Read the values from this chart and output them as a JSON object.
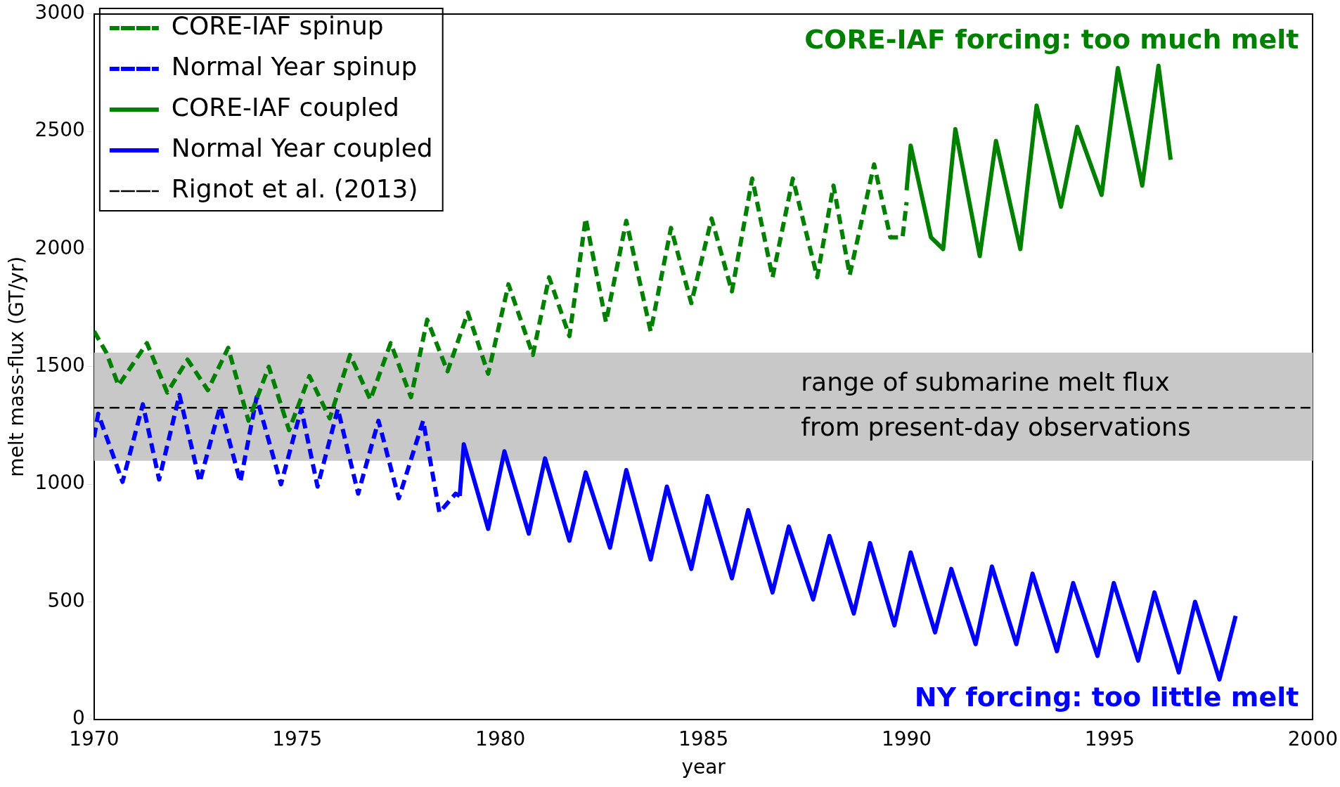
{
  "chart_data": {
    "type": "line",
    "xlabel": "year",
    "ylabel": "melt mass-flux (GT/yr)",
    "xlim": [
      1970,
      2000
    ],
    "ylim": [
      0,
      3000
    ],
    "xticks": [
      1970,
      1975,
      1980,
      1985,
      1990,
      1995,
      2000
    ],
    "yticks": [
      0,
      500,
      1000,
      1500,
      2000,
      2500,
      3000
    ],
    "legend": "top left",
    "grid": false,
    "series": [
      {
        "name": "CORE-IAF spinup",
        "color": "#008000",
        "line_style": "dashed",
        "x": [
          1970,
          1970.3,
          1970.6,
          1971.3,
          1971.8,
          1972.3,
          1972.8,
          1973.3,
          1973.8,
          1974.3,
          1974.8,
          1975.3,
          1975.8,
          1976.3,
          1976.8,
          1977.3,
          1977.8,
          1978.2,
          1978.7,
          1979.2,
          1979.7,
          1980.2,
          1980.8,
          1981.2,
          1981.7,
          1982.1,
          1982.6,
          1983.1,
          1983.7,
          1984.2,
          1984.7,
          1985.2,
          1985.7,
          1986.2,
          1986.7,
          1987.2,
          1987.8,
          1988.2,
          1988.6,
          1989.2,
          1989.6,
          1989.9,
          1990
        ],
        "values": [
          1650,
          1560,
          1420,
          1600,
          1390,
          1530,
          1400,
          1580,
          1270,
          1500,
          1230,
          1460,
          1280,
          1550,
          1360,
          1600,
          1370,
          1700,
          1480,
          1730,
          1470,
          1850,
          1550,
          1880,
          1630,
          2130,
          1690,
          2120,
          1650,
          2090,
          1770,
          2130,
          1820,
          2300,
          1880,
          2300,
          1880,
          2270,
          1890,
          2360,
          2050,
          2050,
          2200
        ]
      },
      {
        "name": "Normal Year spinup",
        "color": "#0000ff",
        "line_style": "dashed",
        "x": [
          1970,
          1970.1,
          1970.7,
          1971.2,
          1971.6,
          1972.1,
          1972.6,
          1973.1,
          1973.6,
          1974,
          1974.6,
          1975.1,
          1975.5,
          1976,
          1976.5,
          1977,
          1977.5,
          1978.1,
          1978.5,
          1978.9,
          1979
        ],
        "values": [
          1200,
          1300,
          1010,
          1340,
          1020,
          1380,
          1010,
          1330,
          1010,
          1370,
          1000,
          1320,
          990,
          1320,
          960,
          1270,
          940,
          1270,
          880,
          960,
          950
        ]
      },
      {
        "name": "CORE-IAF coupled",
        "color": "#008000",
        "line_style": "solid",
        "x": [
          1990,
          1990.1,
          1990.6,
          1990.9,
          1991.2,
          1991.8,
          1992.2,
          1992.8,
          1993.2,
          1993.8,
          1994.2,
          1994.8,
          1995.2,
          1995.8,
          1996.2,
          1996.5
        ],
        "values": [
          2250,
          2440,
          2050,
          2000,
          2510,
          1970,
          2460,
          2000,
          2610,
          2180,
          2520,
          2230,
          2770,
          2270,
          2780,
          2380
        ]
      },
      {
        "name": "Normal Year coupled",
        "color": "#0000ff",
        "line_style": "solid",
        "x": [
          1979,
          1979.1,
          1979.7,
          1980.1,
          1980.7,
          1981.1,
          1981.7,
          1982.1,
          1982.7,
          1983.1,
          1983.7,
          1984.1,
          1984.7,
          1985.1,
          1985.7,
          1986.1,
          1986.7,
          1987.1,
          1987.7,
          1988.1,
          1988.7,
          1989.1,
          1989.7,
          1990.1,
          1990.7,
          1991.1,
          1991.7,
          1992.1,
          1992.7,
          1993.1,
          1993.7,
          1994.1,
          1994.7,
          1995.1,
          1995.7,
          1996.1,
          1996.7,
          1997.1,
          1997.7,
          1998.1
        ],
        "values": [
          950,
          1170,
          810,
          1140,
          790,
          1110,
          760,
          1050,
          730,
          1060,
          680,
          990,
          640,
          950,
          600,
          890,
          540,
          820,
          510,
          780,
          450,
          750,
          400,
          710,
          370,
          640,
          320,
          650,
          320,
          620,
          290,
          580,
          270,
          580,
          250,
          540,
          200,
          500,
          170,
          440
        ]
      }
    ],
    "ref_lines": [
      {
        "axis": "y",
        "value": 1325,
        "label": "Rignot et al. (2013)",
        "color": "#000000",
        "line_style": "dashed"
      }
    ],
    "bands": [
      {
        "axis": "y",
        "from": 1100,
        "to": 1560,
        "color": "#c8c8c8",
        "label": "range of submarine melt flux\nfrom present-day observations"
      }
    ],
    "annotations": [
      "CORE-IAF forcing: too much melt",
      "NY forcing: too little melt"
    ]
  }
}
